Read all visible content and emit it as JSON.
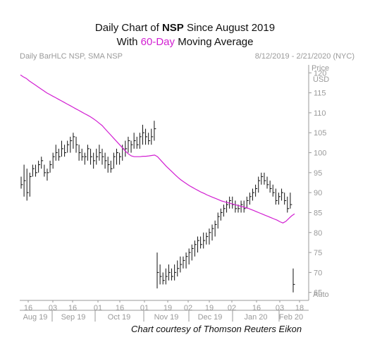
{
  "header": {
    "title_prefix": "Daily Chart of ",
    "title_symbol": "NSP",
    "title_suffix": " Since August 2019",
    "subtitle_prefix": "With ",
    "subtitle_highlight": "60-Day",
    "subtitle_suffix": " Moving Average",
    "meta_left": "Daily BarHLC NSP, SMA NSP",
    "meta_right": "8/12/2019 - 2/21/2020 (NYC)",
    "caption": "Chart courtesy of Thomson Reuters Eikon"
  },
  "colors": {
    "price_bars": "#111111",
    "sma_line": "#d21fd2",
    "axis": "#9a9a9a"
  },
  "chart_data": {
    "type": "line",
    "title": "",
    "price_label": "Price",
    "currency_label": "USD",
    "auto_label": "Auto",
    "ylim": [
      63,
      122
    ],
    "y_ticks": [
      65,
      70,
      75,
      80,
      85,
      90,
      95,
      100,
      105,
      110,
      115,
      120
    ],
    "x_ticks": [
      "16",
      "03",
      "16",
      "01",
      "16",
      "01",
      "19",
      "02",
      "19",
      "02",
      "16",
      "03",
      "18"
    ],
    "months": [
      "Aug 19",
      "Sep 19",
      "Oct 19",
      "Nov 19",
      "Dec 19",
      "Jan 20",
      "Feb 20"
    ],
    "series": [
      {
        "name": "NSP",
        "style": "HLC bars",
        "bars": [
          [
            94,
            91,
            92
          ],
          [
            97,
            89,
            93
          ],
          [
            96,
            88,
            90
          ],
          [
            95,
            89,
            94
          ],
          [
            97,
            94,
            96
          ],
          [
            97,
            94,
            95
          ],
          [
            98,
            95,
            97
          ],
          [
            99,
            96,
            98
          ],
          [
            97,
            94,
            95
          ],
          [
            96,
            93,
            95
          ],
          [
            98,
            95,
            97
          ],
          [
            100,
            96,
            99
          ],
          [
            102,
            98,
            100
          ],
          [
            101,
            98,
            99
          ],
          [
            103,
            99,
            101
          ],
          [
            102,
            99,
            100
          ],
          [
            103,
            100,
            102
          ],
          [
            104,
            100,
            103
          ],
          [
            105,
            101,
            104
          ],
          [
            104,
            100,
            102
          ],
          [
            102,
            98,
            100
          ],
          [
            101,
            98,
            99
          ],
          [
            100,
            97,
            99
          ],
          [
            102,
            98,
            101
          ],
          [
            101,
            97,
            99
          ],
          [
            100,
            96,
            98
          ],
          [
            101,
            97,
            99
          ],
          [
            102,
            98,
            100
          ],
          [
            101,
            97,
            99
          ],
          [
            100,
            96,
            98
          ],
          [
            99,
            95,
            97
          ],
          [
            98,
            95,
            96
          ],
          [
            100,
            96,
            99
          ],
          [
            101,
            97,
            100
          ],
          [
            100,
            97,
            99
          ],
          [
            102,
            98,
            101
          ],
          [
            103,
            99,
            101
          ],
          [
            104,
            100,
            103
          ],
          [
            103,
            100,
            102
          ],
          [
            105,
            101,
            103
          ],
          [
            104,
            101,
            102
          ],
          [
            105,
            101,
            104
          ],
          [
            107,
            102,
            105
          ],
          [
            106,
            102,
            104
          ],
          [
            105,
            102,
            103
          ],
          [
            106,
            102,
            104
          ],
          [
            108,
            103,
            106
          ],
          [
            75,
            66,
            70
          ],
          [
            72,
            67,
            69
          ],
          [
            70,
            67,
            68
          ],
          [
            71,
            67,
            69
          ],
          [
            72,
            68,
            70
          ],
          [
            71,
            68,
            69
          ],
          [
            72,
            68,
            70
          ],
          [
            73,
            69,
            71
          ],
          [
            74,
            70,
            72
          ],
          [
            74,
            71,
            73
          ],
          [
            75,
            71,
            74
          ],
          [
            76,
            72,
            75
          ],
          [
            77,
            73,
            76
          ],
          [
            78,
            74,
            77
          ],
          [
            79,
            75,
            78
          ],
          [
            79,
            76,
            77
          ],
          [
            80,
            76,
            78
          ],
          [
            80,
            77,
            79
          ],
          [
            81,
            77,
            80
          ],
          [
            82,
            78,
            81
          ],
          [
            83,
            79,
            82
          ],
          [
            85,
            81,
            84
          ],
          [
            86,
            83,
            85
          ],
          [
            87,
            84,
            86
          ],
          [
            88,
            85,
            87
          ],
          [
            89,
            86,
            88
          ],
          [
            89,
            86,
            87
          ],
          [
            88,
            85,
            86
          ],
          [
            87,
            85,
            86
          ],
          [
            88,
            85,
            87
          ],
          [
            88,
            85,
            86
          ],
          [
            89,
            86,
            88
          ],
          [
            90,
            87,
            89
          ],
          [
            91,
            88,
            90
          ],
          [
            92,
            89,
            91
          ],
          [
            94,
            90,
            93
          ],
          [
            95,
            92,
            94
          ],
          [
            95,
            92,
            93
          ],
          [
            94,
            91,
            92
          ],
          [
            93,
            90,
            91
          ],
          [
            92,
            89,
            90
          ],
          [
            91,
            87,
            88
          ],
          [
            90,
            87,
            89
          ],
          [
            91,
            88,
            90
          ],
          [
            90,
            87,
            88
          ],
          [
            89,
            85,
            86
          ],
          [
            90,
            86,
            87
          ],
          [
            71,
            65,
            67
          ]
        ]
      },
      {
        "name": "SMA NSP",
        "style": "60-Day moving average",
        "values": [
          119.5,
          119,
          118.6,
          118,
          117.5,
          117,
          116.5,
          116,
          115.5,
          115,
          114.6,
          114.2,
          113.8,
          113.4,
          113,
          112.6,
          112.2,
          111.8,
          111.4,
          111,
          110.6,
          110.2,
          109.8,
          109.4,
          109,
          108.5,
          108,
          107.4,
          106.8,
          106,
          105.2,
          104.4,
          103.6,
          102.8,
          102,
          101.2,
          100.4,
          99.7,
          99.2,
          99,
          99,
          99,
          99.1,
          99.1,
          99.2,
          99.3,
          99.4,
          99,
          98.2,
          97.4,
          96.6,
          95.9,
          95.2,
          94.5,
          93.8,
          93.2,
          92.7,
          92.2,
          91.7,
          91.3,
          90.9,
          90.5,
          90.1,
          89.8,
          89.4,
          89.1,
          88.8,
          88.5,
          88.2,
          87.9,
          87.7,
          87.5,
          87.3,
          87.1,
          86.9,
          86.7,
          86.5,
          86.3,
          86.1,
          85.8,
          85.5,
          85.2,
          84.9,
          84.6,
          84.3,
          84,
          83.7,
          83.4,
          83.1,
          82.7,
          82.4,
          82.8,
          83.5,
          84.2,
          84.7
        ]
      }
    ]
  }
}
